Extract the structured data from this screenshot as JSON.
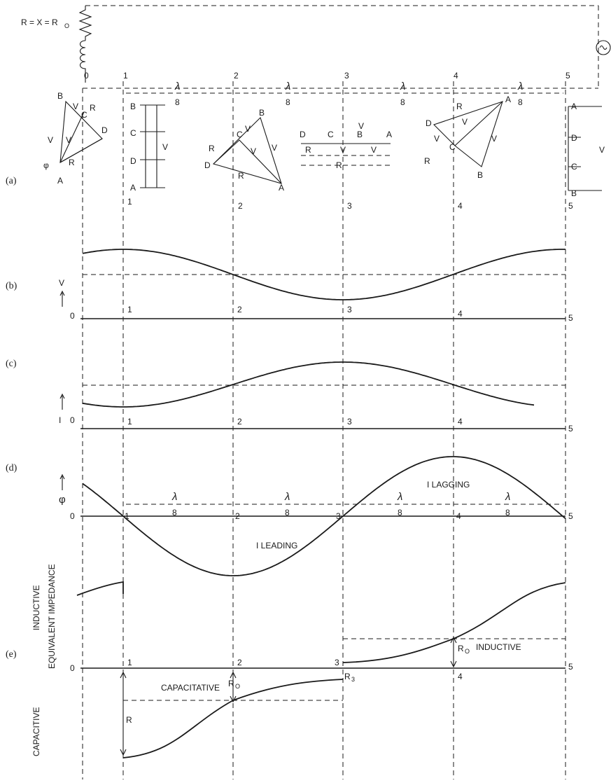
{
  "circuit": {
    "label": "R = X = R",
    "label_sub": "O",
    "stations": [
      "0",
      "1",
      "2",
      "3",
      "4",
      "5"
    ]
  },
  "segments": {
    "lambda": "λ",
    "eight": "8"
  },
  "panels": {
    "a": "(a)",
    "b": "(b)",
    "c": "(c)",
    "d": "(d)",
    "e": "(e)"
  },
  "vectors": {
    "A": "A",
    "B": "B",
    "C": "C",
    "D": "D",
    "V": "V",
    "VF": "V",
    "VF_sub": "F",
    "VR": "V",
    "VR_sub": "R",
    "RoI": "R",
    "RoI_tail": "I",
    "o_sub": "O",
    "RoIR_sub": "R",
    "RoIF_sub": "F",
    "phi": "φ"
  },
  "axes": {
    "b_symbol": "V",
    "c_symbol": "I",
    "d_symbol": "φ",
    "zero": "0"
  },
  "annotations": {
    "leading": "I  LEADING",
    "lagging": "I  LAGGING",
    "inductive_axis": "INDUCTIVE",
    "equivalent_impedance": "EQUIVALENT IMPEDANCE",
    "capacitive_axis": "CAPACITIVE",
    "capacitative": "CAPACITATIVE",
    "inductive_region": "INDUCTIVE",
    "ro": "R",
    "ro_sub": "O",
    "r": "R",
    "r3": "R",
    "r3_sub": "3"
  }
}
